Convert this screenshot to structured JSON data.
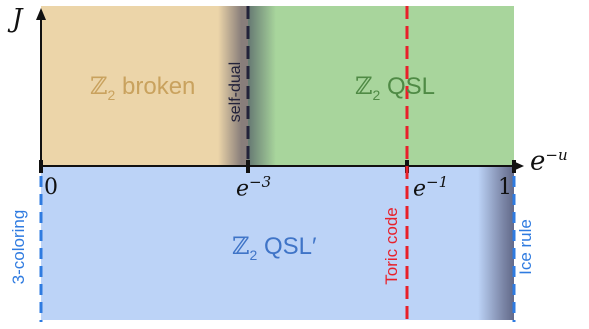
{
  "axes": {
    "y_label": "J",
    "x_label": "e",
    "x_label_sup": "−u",
    "tick_0": "0",
    "tick_e3": "e",
    "tick_e3_sup": "−3",
    "tick_e1": "e",
    "tick_e1_sup": "−1",
    "tick_1": "1"
  },
  "regions": {
    "broken": {
      "symbol": "ℤ",
      "sub": "2",
      "label": "broken",
      "color": "#c9a25e"
    },
    "qsl": {
      "symbol": "ℤ",
      "sub": "2",
      "label": "QSL",
      "color": "#4f8a45"
    },
    "qsl_prime": {
      "symbol": "ℤ",
      "sub": "2",
      "label": "QSL′",
      "color": "#3f74c7"
    }
  },
  "lines": {
    "self_dual": "self-dual",
    "toric_code": "Toric code",
    "three_coloring": "3-coloring",
    "ice_rule": "Ice rule"
  },
  "colors": {
    "broken_bg": "#ecd5a9",
    "qsl_bg": "#a8d59c",
    "qsl_prime_bg": "#bcd3f7",
    "red_dash": "#e8202a",
    "blue_dash": "#2f7be0",
    "dark_dash": "#22223a"
  }
}
